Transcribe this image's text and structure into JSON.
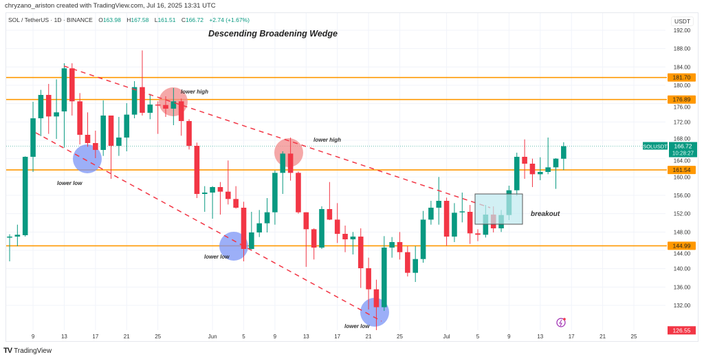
{
  "credit": "chryzano_ariston created with TradingView.com, Jul 16, 2025 13:31 UTC",
  "legend": {
    "symbol": "SOL / TetherUS · 1D · BINANCE",
    "o_label": "O",
    "o": "163.98",
    "h_label": "H",
    "h": "167.58",
    "l_label": "L",
    "l": "161.51",
    "c_label": "C",
    "c": "166.72",
    "change": "+2.74 (+1.67%)"
  },
  "currency": "USDT",
  "footer_logo": "TradingView",
  "colors": {
    "up": "#089981",
    "down": "#f23645",
    "level": "#ff9800",
    "trendline": "#f23645",
    "high_marker": "#f28b8b",
    "low_marker": "#7b94f5",
    "breakout_box": "#bfeaf0"
  },
  "chart_data": {
    "type": "candlestick",
    "title": "Descending Broadening Wedge",
    "symbol": "SOLUSDT",
    "ylim": [
      126,
      194
    ],
    "y_ticks": [
      "192.00",
      "188.00",
      "184.00",
      "180.00",
      "176.00",
      "172.00",
      "168.00",
      "164.00",
      "160.00",
      "156.00",
      "152.00",
      "148.00",
      "144.00",
      "140.00",
      "136.00",
      "132.00"
    ],
    "x_ticks": [
      {
        "date": "2025-05-09",
        "label": "9"
      },
      {
        "date": "2025-05-13",
        "label": "13"
      },
      {
        "date": "2025-05-17",
        "label": "17"
      },
      {
        "date": "2025-05-21",
        "label": "21"
      },
      {
        "date": "2025-05-25",
        "label": "25"
      },
      {
        "date": "2025-06-01",
        "label": "Jun"
      },
      {
        "date": "2025-06-05",
        "label": "5"
      },
      {
        "date": "2025-06-09",
        "label": "9"
      },
      {
        "date": "2025-06-13",
        "label": "13"
      },
      {
        "date": "2025-06-17",
        "label": "17"
      },
      {
        "date": "2025-06-21",
        "label": "21"
      },
      {
        "date": "2025-06-25",
        "label": "25"
      },
      {
        "date": "2025-07-01",
        "label": "Jul"
      },
      {
        "date": "2025-07-05",
        "label": "5"
      },
      {
        "date": "2025-07-09",
        "label": "9"
      },
      {
        "date": "2025-07-13",
        "label": "13"
      },
      {
        "date": "2025-07-17",
        "label": "17"
      },
      {
        "date": "2025-07-21",
        "label": "21"
      },
      {
        "date": "2025-07-25",
        "label": "25"
      }
    ],
    "candles_columns": [
      "date",
      "open",
      "high",
      "low",
      "close"
    ],
    "candles": [
      [
        "2025-05-06",
        146.8,
        147.5,
        141.6,
        147.0
      ],
      [
        "2025-05-07",
        147.0,
        149.6,
        144.9,
        147.4
      ],
      [
        "2025-05-08",
        147.3,
        164.5,
        147.0,
        164.4
      ],
      [
        "2025-05-09",
        164.4,
        176.4,
        161.1,
        172.8
      ],
      [
        "2025-05-10",
        172.8,
        179.0,
        168.9,
        177.9
      ],
      [
        "2025-05-11",
        177.9,
        180.3,
        169.4,
        173.2
      ],
      [
        "2025-05-12",
        173.2,
        181.3,
        168.3,
        174.1
      ],
      [
        "2025-05-13",
        174.3,
        184.8,
        166.4,
        183.7
      ],
      [
        "2025-05-14",
        183.7,
        184.8,
        173.4,
        176.5
      ],
      [
        "2025-05-15",
        176.5,
        178.3,
        167.1,
        169.2
      ],
      [
        "2025-05-16",
        169.2,
        174.1,
        166.6,
        167.4
      ],
      [
        "2025-05-17",
        167.4,
        170.1,
        164.1,
        165.9
      ],
      [
        "2025-05-18",
        165.9,
        176.7,
        164.6,
        173.4
      ],
      [
        "2025-05-19",
        173.4,
        173.4,
        159.6,
        166.8
      ],
      [
        "2025-05-20",
        166.8,
        173.1,
        164.6,
        168.6
      ],
      [
        "2025-05-21",
        168.6,
        176.1,
        165.6,
        173.6
      ],
      [
        "2025-05-22",
        173.6,
        180.9,
        172.8,
        179.6
      ],
      [
        "2025-05-23",
        179.6,
        187.6,
        173.4,
        174.0
      ],
      [
        "2025-05-24",
        174.0,
        178.1,
        172.6,
        175.8
      ],
      [
        "2025-05-25",
        175.8,
        176.5,
        169.4,
        175.6
      ],
      [
        "2025-05-26",
        175.7,
        177.6,
        173.1,
        174.9
      ],
      [
        "2025-05-27",
        174.9,
        179.4,
        171.3,
        176.5
      ],
      [
        "2025-05-28",
        176.5,
        177.1,
        169.0,
        172.2
      ],
      [
        "2025-05-29",
        172.2,
        172.6,
        166.0,
        166.8
      ],
      [
        "2025-05-30",
        166.8,
        167.5,
        155.4,
        156.3
      ],
      [
        "2025-05-31",
        156.3,
        158.0,
        152.4,
        156.6
      ],
      [
        "2025-06-01",
        156.6,
        158.0,
        150.9,
        157.8
      ],
      [
        "2025-06-02",
        157.8,
        158.9,
        151.8,
        156.8
      ],
      [
        "2025-06-03",
        156.8,
        163.6,
        154.0,
        155.2
      ],
      [
        "2025-06-04",
        155.2,
        158.0,
        153.1,
        153.3
      ],
      [
        "2025-06-05",
        153.3,
        154.6,
        141.6,
        144.3
      ],
      [
        "2025-06-06",
        144.3,
        152.4,
        144.2,
        147.9
      ],
      [
        "2025-06-07",
        147.9,
        152.8,
        146.9,
        149.9
      ],
      [
        "2025-06-08",
        149.9,
        155.4,
        147.9,
        152.3
      ],
      [
        "2025-06-09",
        152.3,
        161.4,
        149.6,
        160.9
      ],
      [
        "2025-06-10",
        160.9,
        165.6,
        156.3,
        165.1
      ],
      [
        "2025-06-11",
        165.1,
        168.6,
        159.2,
        160.9
      ],
      [
        "2025-06-12",
        160.9,
        161.2,
        152.0,
        152.3
      ],
      [
        "2025-06-13",
        152.3,
        152.3,
        140.4,
        148.6
      ],
      [
        "2025-06-14",
        148.6,
        148.8,
        142.0,
        144.6
      ],
      [
        "2025-06-15",
        144.6,
        153.6,
        144.3,
        153.0
      ],
      [
        "2025-06-16",
        153.0,
        158.9,
        150.6,
        150.7
      ],
      [
        "2025-06-17",
        150.7,
        154.3,
        145.6,
        147.6
      ],
      [
        "2025-06-18",
        147.6,
        149.4,
        143.6,
        146.4
      ],
      [
        "2025-06-19",
        146.4,
        148.0,
        143.1,
        147.0
      ],
      [
        "2025-06-20",
        147.0,
        148.8,
        135.8,
        140.1
      ],
      [
        "2025-06-21",
        140.1,
        142.4,
        131.1,
        135.5
      ],
      [
        "2025-06-22",
        135.5,
        137.6,
        126.6,
        131.6
      ],
      [
        "2025-06-23",
        131.6,
        147.1,
        130.8,
        144.6
      ],
      [
        "2025-06-24",
        144.6,
        146.9,
        142.4,
        145.8
      ],
      [
        "2025-06-25",
        145.8,
        148.0,
        142.0,
        143.6
      ],
      [
        "2025-06-26",
        143.6,
        144.9,
        138.3,
        139.1
      ],
      [
        "2025-06-27",
        139.1,
        144.9,
        137.1,
        142.1
      ],
      [
        "2025-06-28",
        142.1,
        152.6,
        141.3,
        150.7
      ],
      [
        "2025-06-29",
        150.7,
        154.8,
        149.6,
        153.3
      ],
      [
        "2025-06-30",
        153.3,
        160.0,
        149.6,
        154.8
      ],
      [
        "2025-07-01",
        154.8,
        155.5,
        145.0,
        147.0
      ],
      [
        "2025-07-02",
        147.0,
        154.3,
        145.8,
        152.2
      ],
      [
        "2025-07-03",
        152.4,
        156.6,
        150.1,
        152.5
      ],
      [
        "2025-07-04",
        152.4,
        153.9,
        145.4,
        147.7
      ],
      [
        "2025-07-05",
        147.7,
        148.6,
        146.0,
        147.4
      ],
      [
        "2025-07-06",
        147.4,
        153.9,
        146.8,
        151.8
      ],
      [
        "2025-07-07",
        151.8,
        153.6,
        147.9,
        148.8
      ],
      [
        "2025-07-08",
        148.8,
        152.8,
        148.0,
        151.7
      ],
      [
        "2025-07-09",
        151.7,
        158.1,
        150.6,
        157.1
      ],
      [
        "2025-07-10",
        157.1,
        165.3,
        155.9,
        164.4
      ],
      [
        "2025-07-11",
        164.4,
        168.2,
        159.6,
        162.9
      ],
      [
        "2025-07-12",
        162.9,
        164.0,
        157.8,
        160.6
      ],
      [
        "2025-07-13",
        160.6,
        164.3,
        159.3,
        161.1
      ],
      [
        "2025-07-14",
        161.1,
        168.6,
        160.6,
        162.1
      ],
      [
        "2025-07-15",
        162.1,
        164.1,
        157.4,
        164.0
      ],
      [
        "2025-07-16",
        163.98,
        167.58,
        161.51,
        166.72
      ]
    ],
    "horizontal_levels": [
      {
        "price": 181.7,
        "label": "181.70"
      },
      {
        "price": 176.89,
        "label": "176.89"
      },
      {
        "price": 161.54,
        "label": "161.54"
      },
      {
        "price": 144.99,
        "label": "144.99"
      }
    ],
    "last_price": {
      "price": 166.72,
      "label": "166.72",
      "countdown": "10:28:27",
      "symbol_tag": "SOLUSDT"
    },
    "low_marker": {
      "price": 126.55,
      "label": "126.55"
    },
    "annotations": {
      "lower_high_1": "lower high",
      "lower_high_2": "lower high",
      "lower_low_1": "lower low",
      "lower_low_2": "lower low",
      "lower_low_3": "lower low",
      "breakout": "breakout"
    }
  }
}
